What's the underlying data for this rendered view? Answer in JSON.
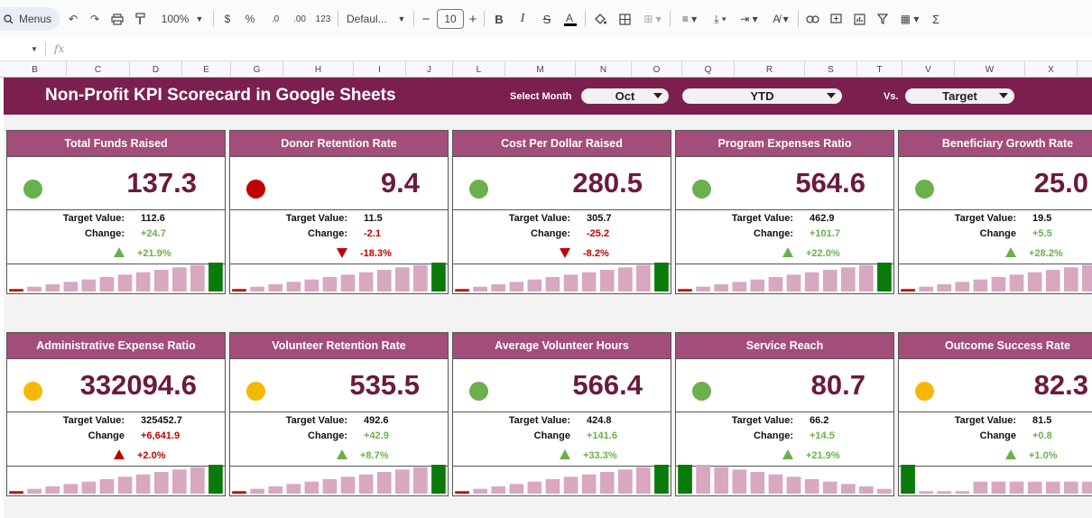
{
  "toolbar": {
    "menus_label": "Menus",
    "zoom": "100%",
    "currency": "$",
    "percent": "%",
    "dec_decrease": ".0",
    "dec_increase": ".00",
    "number_format": "123",
    "font": "Defaul...",
    "font_size": "10",
    "bold": "B",
    "italic": "I",
    "sigma": "Σ"
  },
  "formula_bar": {
    "fx": "fx"
  },
  "columns": [
    "B",
    "C",
    "D",
    "E",
    "G",
    "H",
    "I",
    "J",
    "L",
    "M",
    "N",
    "O",
    "Q",
    "R",
    "S",
    "T",
    "V",
    "W",
    "X"
  ],
  "dashboard": {
    "title": "Non-Profit KPI Scorecard in Google Sheets",
    "select_month_label": "Select Month",
    "month": "Oct",
    "period": "YTD",
    "vs_label": "Vs.",
    "comparison": "Target"
  },
  "colors": {
    "band": "#7b1f4f",
    "card_header": "#a34d7b",
    "green": "#6ab04c",
    "red": "#c00000",
    "amber": "#f5b800",
    "bar_pink": "#d7a8bf",
    "bar_highlight": "#0a7a0a"
  },
  "cards": [
    {
      "title": "Total Funds Raised",
      "value": "137.3",
      "status": "green",
      "target_label": "Target Value:",
      "target": "112.6",
      "change_label": "Change:",
      "change": "+24.7",
      "change_color": "green",
      "dir": "up",
      "pct": "+21.9%",
      "pct_color": "green",
      "spark": [
        1,
        2,
        3,
        4,
        5,
        6,
        7,
        8,
        9,
        10,
        11,
        12
      ],
      "hl": [
        11
      ]
    },
    {
      "title": "Donor Retention Rate",
      "value": "9.4",
      "status": "red",
      "target_label": "Target Value:",
      "target": "11.5",
      "change_label": "Change:",
      "change": "-2.1",
      "change_color": "red",
      "dir": "down",
      "pct": "-18.3%",
      "pct_color": "red",
      "spark": [
        1,
        2,
        3,
        4,
        5,
        6,
        7,
        8,
        9,
        10,
        11,
        12
      ],
      "hl": [
        11
      ]
    },
    {
      "title": "Cost Per Dollar Raised",
      "value": "280.5",
      "status": "green",
      "target_label": "Target Value:",
      "target": "305.7",
      "change_label": "Change:",
      "change": "-25.2",
      "change_color": "red",
      "dir": "down",
      "pct": "-8.2%",
      "pct_color": "red",
      "spark": [
        1,
        2,
        3,
        4,
        5,
        6,
        7,
        8,
        9,
        10,
        11,
        12
      ],
      "hl": [
        11
      ]
    },
    {
      "title": "Program Expenses Ratio",
      "value": "564.6",
      "status": "green",
      "target_label": "Target Value:",
      "target": "462.9",
      "change_label": "Change:",
      "change": "+101.7",
      "change_color": "green",
      "dir": "up",
      "pct": "+22.0%",
      "pct_color": "green",
      "spark": [
        1,
        2,
        3,
        4,
        5,
        6,
        7,
        8,
        9,
        10,
        11,
        12
      ],
      "hl": [
        11
      ]
    },
    {
      "title": "Beneficiary Growth Rate",
      "value": "25.0",
      "status": "green",
      "target_label": "Target Value:",
      "target": "19.5",
      "change_label": "Change",
      "change": "+5.5",
      "change_color": "green",
      "dir": "up",
      "pct": "+28.2%",
      "pct_color": "green",
      "spark": [
        1,
        2,
        3,
        4,
        5,
        6,
        7,
        8,
        9,
        10,
        11,
        12
      ],
      "hl": []
    },
    {
      "title": "Administrative Expense Ratio",
      "value": "332094.6",
      "status": "amber",
      "target_label": "Target Value:",
      "target": "325452.7",
      "change_label": "Change",
      "change": "+6,641.9",
      "change_color": "red",
      "dir": "up-red",
      "pct": "+2.0%",
      "pct_color": "red",
      "spark": [
        1,
        2,
        3,
        4,
        5,
        6,
        7,
        8,
        9,
        10,
        11,
        12
      ],
      "hl": [
        11
      ]
    },
    {
      "title": "Volunteer Retention Rate",
      "value": "535.5",
      "status": "amber",
      "target_label": "Target Value:",
      "target": "492.6",
      "change_label": "Change:",
      "change": "+42.9",
      "change_color": "green",
      "dir": "up",
      "pct": "+8.7%",
      "pct_color": "green",
      "spark": [
        1,
        2,
        3,
        4,
        5,
        6,
        7,
        8,
        9,
        10,
        11,
        12
      ],
      "hl": [
        11
      ]
    },
    {
      "title": "Average Volunteer Hours",
      "value": "566.4",
      "status": "green",
      "target_label": "Target Value:",
      "target": "424.8",
      "change_label": "Change",
      "change": "+141.6",
      "change_color": "green",
      "dir": "up",
      "pct": "+33.3%",
      "pct_color": "green",
      "spark": [
        1,
        2,
        3,
        4,
        5,
        6,
        7,
        8,
        9,
        10,
        11,
        12
      ],
      "hl": [
        11
      ]
    },
    {
      "title": "Service Reach",
      "value": "80.7",
      "status": "green",
      "target_label": "Target Value:",
      "target": "66.2",
      "change_label": "Change:",
      "change": "+14.5",
      "change_color": "green",
      "dir": "up",
      "pct": "+21.9%",
      "pct_color": "green",
      "spark": [
        12,
        12,
        11,
        10,
        9,
        8,
        7,
        6,
        5,
        4,
        3,
        2
      ],
      "hl": [
        0
      ]
    },
    {
      "title": "Outcome Success Rate",
      "value": "82.3",
      "status": "amber",
      "target_label": "Target Value:",
      "target": "81.5",
      "change_label": "Change",
      "change": "+0.8",
      "change_color": "green",
      "dir": "up",
      "pct": "+1.0%",
      "pct_color": "green",
      "spark": [
        12,
        1,
        1,
        1,
        5,
        5,
        5,
        5,
        5,
        5,
        5,
        5
      ],
      "hl": [
        0
      ]
    }
  ]
}
